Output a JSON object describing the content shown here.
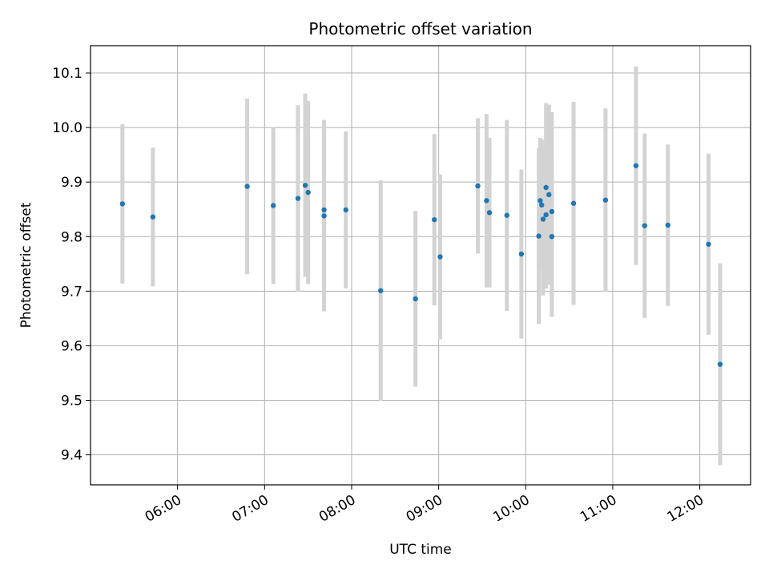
{
  "chart_data": {
    "type": "scatter",
    "title": "Photometric offset variation",
    "xlabel": "UTC time",
    "ylabel": "Photometric offset",
    "x_ticks": [
      "06:00",
      "07:00",
      "08:00",
      "09:00",
      "10:00",
      "11:00",
      "12:00"
    ],
    "y_ticks": [
      "9.4",
      "9.5",
      "9.6",
      "9.7",
      "9.8",
      "9.9",
      "10.0",
      "10.1"
    ],
    "xlim": [
      "05:00",
      "12:35"
    ],
    "ylim": [
      9.345,
      10.15
    ],
    "grid": true,
    "colors": {
      "point": "#1f77b4",
      "errorbar": "#d3d3d3",
      "grid": "#b0b0b0"
    },
    "points": [
      {
        "x": "05:22",
        "y": 9.86,
        "err": 0.146
      },
      {
        "x": "05:43",
        "y": 9.836,
        "err": 0.127
      },
      {
        "x": "06:48",
        "y": 9.892,
        "err": 0.161
      },
      {
        "x": "07:06",
        "y": 9.857,
        "err": 0.144
      },
      {
        "x": "07:23",
        "y": 9.87,
        "err": 0.171
      },
      {
        "x": "07:28",
        "y": 9.894,
        "err": 0.168
      },
      {
        "x": "07:30",
        "y": 9.881,
        "err": 0.168
      },
      {
        "x": "07:41",
        "y": 9.849,
        "err": 0.165
      },
      {
        "x": "07:41",
        "y": 9.838,
        "err": 0.175
      },
      {
        "x": "07:56",
        "y": 9.849,
        "err": 0.144
      },
      {
        "x": "08:20",
        "y": 9.701,
        "err": 0.202
      },
      {
        "x": "08:44",
        "y": 9.686,
        "err": 0.161
      },
      {
        "x": "08:57",
        "y": 9.831,
        "err": 0.157
      },
      {
        "x": "09:01",
        "y": 9.763,
        "err": 0.151
      },
      {
        "x": "09:27",
        "y": 9.893,
        "err": 0.124
      },
      {
        "x": "09:33",
        "y": 9.866,
        "err": 0.159
      },
      {
        "x": "09:35",
        "y": 9.844,
        "err": 0.137
      },
      {
        "x": "09:47",
        "y": 9.839,
        "err": 0.175
      },
      {
        "x": "09:57",
        "y": 9.768,
        "err": 0.155
      },
      {
        "x": "10:09",
        "y": 9.801,
        "err": 0.161
      },
      {
        "x": "10:10",
        "y": 9.866,
        "err": 0.115
      },
      {
        "x": "10:11",
        "y": 9.858,
        "err": 0.12
      },
      {
        "x": "10:12",
        "y": 9.832,
        "err": 0.14
      },
      {
        "x": "10:14",
        "y": 9.84,
        "err": 0.135
      },
      {
        "x": "10:14",
        "y": 9.89,
        "err": 0.155
      },
      {
        "x": "10:16",
        "y": 9.877,
        "err": 0.165
      },
      {
        "x": "10:18",
        "y": 9.8,
        "err": 0.147
      },
      {
        "x": "10:18",
        "y": 9.846,
        "err": 0.182
      },
      {
        "x": "10:33",
        "y": 9.861,
        "err": 0.186
      },
      {
        "x": "10:55",
        "y": 9.867,
        "err": 0.168
      },
      {
        "x": "11:16",
        "y": 9.93,
        "err": 0.182
      },
      {
        "x": "11:22",
        "y": 9.82,
        "err": 0.169
      },
      {
        "x": "11:38",
        "y": 9.821,
        "err": 0.148
      },
      {
        "x": "12:06",
        "y": 9.786,
        "err": 0.166
      },
      {
        "x": "12:14",
        "y": 9.566,
        "err": 0.185
      }
    ]
  }
}
